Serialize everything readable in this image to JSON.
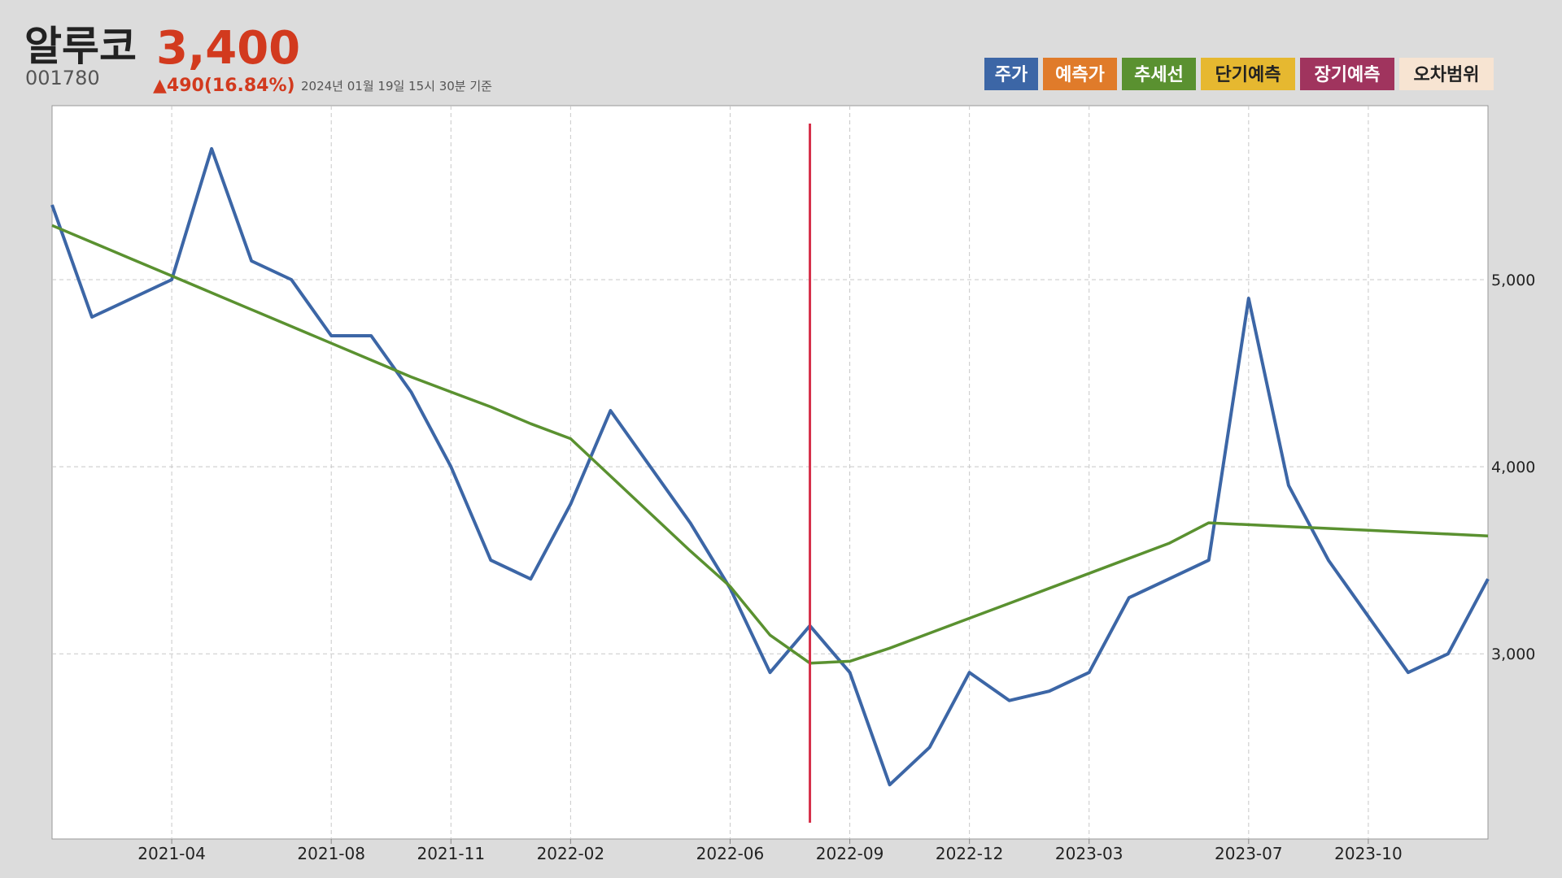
{
  "chart_data": {
    "type": "line",
    "title": "알루코",
    "price": "3,400",
    "code": "001780",
    "change": "▲490(16.84%)",
    "timestamp": "2024년 01월 19일 15시 30분 기준",
    "x": [
      "2021-01",
      "2021-02",
      "2021-03",
      "2021-04",
      "2021-05",
      "2021-06",
      "2021-07",
      "2021-08",
      "2021-09",
      "2021-10",
      "2021-11",
      "2021-12",
      "2022-01",
      "2022-02",
      "2022-03",
      "2022-04",
      "2022-05",
      "2022-06",
      "2022-07",
      "2022-08",
      "2022-09",
      "2022-10",
      "2022-11",
      "2022-12",
      "2023-01",
      "2023-02",
      "2023-03",
      "2023-04",
      "2023-05",
      "2023-06",
      "2023-07",
      "2023-08",
      "2023-09",
      "2023-10",
      "2023-11",
      "2023-12",
      "2024-01"
    ],
    "series": [
      {
        "name": "주가",
        "color": "#3c66a6",
        "values": [
          5400,
          4800,
          4900,
          5000,
          5700,
          5100,
          5000,
          4700,
          4700,
          4400,
          4000,
          3500,
          3400,
          3800,
          4300,
          4000,
          3700,
          3350,
          2900,
          3150,
          2900,
          2300,
          2500,
          2900,
          2750,
          2800,
          2900,
          3300,
          3400,
          3500,
          4900,
          3900,
          3500,
          3200,
          2900,
          3000,
          3400
        ]
      },
      {
        "name": "추세선",
        "color": "#5a9130",
        "values": [
          5290,
          5200,
          5110,
          5020,
          4930,
          4840,
          4750,
          4660,
          4570,
          4480,
          4400,
          4320,
          4230,
          4150,
          3950,
          3750,
          3550,
          3360,
          3100,
          2950,
          2960,
          3030,
          3110,
          3190,
          3270,
          3350,
          3430,
          3510,
          3590,
          3700,
          3690,
          3680,
          3670,
          3660,
          3650,
          3640,
          3630
        ]
      }
    ],
    "legend_extra": [
      {
        "name": "예측가",
        "color": "#e07b2a"
      },
      {
        "name": "단기예측",
        "color": "#e6b830"
      },
      {
        "name": "장기예측",
        "color": "#a0345e"
      },
      {
        "name": "오차범위",
        "color": "#f7e4d2"
      }
    ],
    "marker": {
      "x": "2022-08",
      "color": "#d6304a"
    },
    "xlim": [
      "2021-01",
      "2024-01"
    ],
    "xticks": [
      "2021-04",
      "2021-08",
      "2021-11",
      "2022-02",
      "2022-06",
      "2022-09",
      "2022-12",
      "2023-03",
      "2023-07",
      "2023-10"
    ],
    "ylim": [
      2010,
      5930
    ],
    "yticks": [
      {
        "value": 3000,
        "label": "3,000"
      },
      {
        "value": 4000,
        "label": "4,000"
      },
      {
        "value": 5000,
        "label": "5,000"
      }
    ],
    "grid": true
  }
}
